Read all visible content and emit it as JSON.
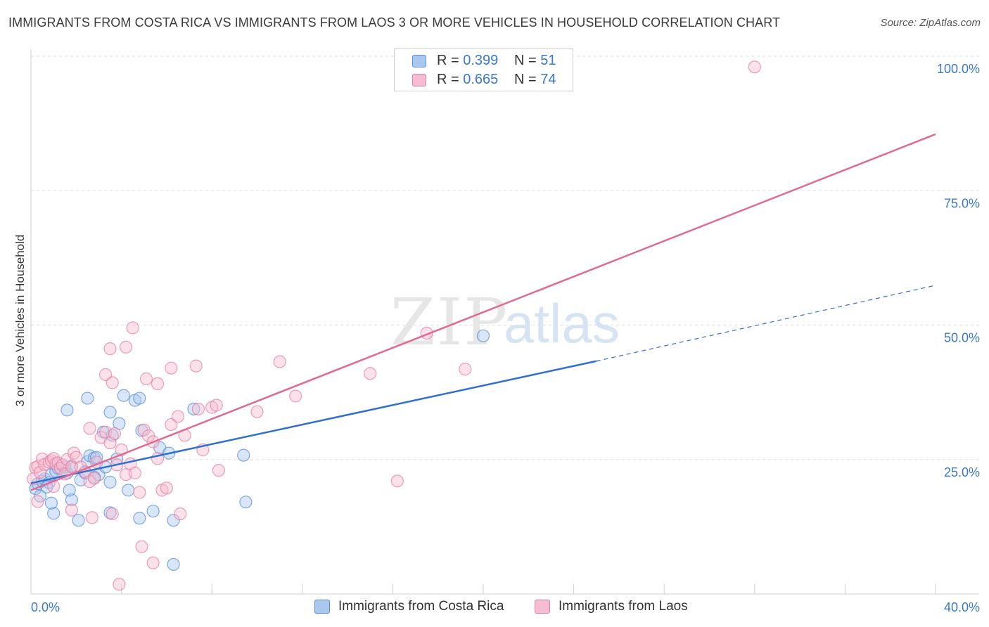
{
  "title": "IMMIGRANTS FROM COSTA RICA VS IMMIGRANTS FROM LAOS 3 OR MORE VEHICLES IN HOUSEHOLD CORRELATION CHART",
  "source": "Source: ZipAtlas.com",
  "watermark": {
    "zip": "ZIP",
    "atlas": "atlas"
  },
  "legend_top": [
    {
      "r_label": "R = ",
      "r_value": "0.399",
      "n_label": "N = ",
      "n_value": "51"
    },
    {
      "r_label": "R = ",
      "r_value": "0.665",
      "n_label": "N = ",
      "n_value": "74"
    }
  ],
  "legend_bottom": [
    {
      "label": "Immigrants from Costa Rica"
    },
    {
      "label": "Immigrants from Laos"
    }
  ],
  "colors": {
    "blue_fill": "#a9c8f0",
    "blue_stroke": "#5b8fd6",
    "blue_line": "#2f6fd0",
    "pink_fill": "#f6bcd0",
    "pink_stroke": "#e47fa3",
    "pink_line": "#e06a96",
    "axis_text": "#3a78c9",
    "grid": "#dddddd"
  },
  "chart_data": {
    "type": "scatter",
    "title": "IMMIGRANTS FROM COSTA RICA VS IMMIGRANTS FROM LAOS 3 OR MORE VEHICLES IN HOUSEHOLD CORRELATION CHART",
    "xlabel": "",
    "ylabel": "3 or more Vehicles in Household",
    "xlim": [
      0,
      40
    ],
    "ylim": [
      0,
      100
    ],
    "x_tick_labels": [
      "0.0%",
      "40.0%"
    ],
    "y_ticks": [
      25,
      50,
      75,
      100
    ],
    "y_tick_labels": [
      "25.0%",
      "50.0%",
      "75.0%",
      "100.0%"
    ],
    "grid": true,
    "legend_position": "top-center",
    "series": [
      {
        "name": "Immigrants from Costa Rica",
        "r": 0.399,
        "n": 51,
        "trend": {
          "x0": 0,
          "y0": 20.6,
          "x1": 25,
          "y1": 43.3,
          "dashed_to_x": 40,
          "dashed_to_y": 57.4
        },
        "points": [
          [
            0.2,
            19.6
          ],
          [
            0.3,
            20.5
          ],
          [
            0.5,
            21.0
          ],
          [
            0.6,
            21.4
          ],
          [
            0.8,
            20.7
          ],
          [
            0.9,
            22.2
          ],
          [
            1.1,
            22.8
          ],
          [
            1.2,
            23.4
          ],
          [
            1.5,
            23.6
          ],
          [
            1.6,
            22.5
          ],
          [
            1.8,
            23.8
          ],
          [
            2.2,
            21.2
          ],
          [
            2.4,
            22.5
          ],
          [
            2.5,
            24.6
          ],
          [
            2.6,
            25.7
          ],
          [
            2.8,
            25.3
          ],
          [
            2.9,
            25.4
          ],
          [
            3.0,
            22.2
          ],
          [
            3.2,
            30.1
          ],
          [
            3.3,
            23.6
          ],
          [
            3.5,
            20.8
          ],
          [
            3.6,
            29.5
          ],
          [
            3.8,
            25.1
          ],
          [
            1.6,
            34.2
          ],
          [
            2.5,
            36.4
          ],
          [
            3.5,
            33.8
          ],
          [
            3.5,
            15.1
          ],
          [
            3.9,
            31.7
          ],
          [
            4.1,
            36.9
          ],
          [
            4.3,
            19.3
          ],
          [
            4.6,
            36.0
          ],
          [
            4.8,
            36.4
          ],
          [
            4.8,
            14.1
          ],
          [
            4.9,
            30.4
          ],
          [
            5.4,
            15.4
          ],
          [
            5.7,
            27.2
          ],
          [
            6.1,
            26.2
          ],
          [
            6.3,
            13.7
          ],
          [
            6.3,
            5.5
          ],
          [
            7.2,
            34.4
          ],
          [
            9.4,
            25.8
          ],
          [
            9.5,
            17.1
          ],
          [
            20.0,
            48.0
          ],
          [
            1.0,
            15.0
          ],
          [
            0.4,
            18.2
          ],
          [
            1.8,
            17.5
          ],
          [
            2.1,
            13.7
          ],
          [
            0.9,
            16.9
          ],
          [
            1.7,
            19.3
          ],
          [
            0.7,
            19.9
          ],
          [
            2.8,
            21.7
          ]
        ]
      },
      {
        "name": "Immigrants from Laos",
        "r": 0.665,
        "n": 74,
        "trend": {
          "x0": 0,
          "y0": 19.3,
          "x1": 40,
          "y1": 85.5
        },
        "points": [
          [
            0.1,
            21.4
          ],
          [
            0.2,
            23.5
          ],
          [
            0.3,
            23.7
          ],
          [
            0.4,
            22.6
          ],
          [
            0.5,
            25.1
          ],
          [
            0.6,
            24.1
          ],
          [
            0.8,
            24.5
          ],
          [
            0.9,
            24.8
          ],
          [
            1.0,
            25.2
          ],
          [
            1.1,
            24.2
          ],
          [
            1.2,
            24.4
          ],
          [
            1.3,
            23.4
          ],
          [
            1.4,
            24.0
          ],
          [
            1.5,
            22.3
          ],
          [
            1.6,
            25.0
          ],
          [
            1.8,
            23.6
          ],
          [
            1.9,
            26.2
          ],
          [
            2.0,
            25.4
          ],
          [
            2.2,
            23.6
          ],
          [
            2.4,
            22.7
          ],
          [
            2.6,
            20.9
          ],
          [
            2.8,
            21.5
          ],
          [
            2.9,
            24.5
          ],
          [
            3.1,
            29.1
          ],
          [
            3.3,
            30.1
          ],
          [
            3.5,
            28.1
          ],
          [
            3.7,
            29.8
          ],
          [
            3.8,
            24.0
          ],
          [
            4.0,
            26.8
          ],
          [
            4.2,
            22.2
          ],
          [
            4.4,
            24.2
          ],
          [
            4.6,
            22.5
          ],
          [
            4.8,
            18.9
          ],
          [
            5.0,
            30.5
          ],
          [
            5.2,
            29.4
          ],
          [
            5.4,
            28.3
          ],
          [
            5.6,
            25.2
          ],
          [
            5.8,
            19.3
          ],
          [
            6.0,
            19.7
          ],
          [
            6.2,
            31.5
          ],
          [
            6.5,
            33.0
          ],
          [
            6.8,
            29.5
          ],
          [
            7.4,
            34.4
          ],
          [
            7.6,
            26.8
          ],
          [
            8.0,
            34.7
          ],
          [
            8.2,
            35.1
          ],
          [
            8.3,
            23.0
          ],
          [
            10.0,
            33.9
          ],
          [
            11.7,
            36.8
          ],
          [
            11.0,
            43.2
          ],
          [
            15.0,
            41.0
          ],
          [
            17.5,
            48.5
          ],
          [
            19.2,
            41.8
          ],
          [
            16.2,
            21.0
          ],
          [
            32.0,
            98.0
          ],
          [
            3.3,
            40.8
          ],
          [
            3.5,
            45.6
          ],
          [
            3.6,
            39.3
          ],
          [
            4.2,
            45.9
          ],
          [
            4.5,
            49.5
          ],
          [
            5.1,
            40.0
          ],
          [
            5.6,
            39.1
          ],
          [
            6.2,
            42.0
          ],
          [
            7.3,
            42.4
          ],
          [
            2.6,
            30.8
          ],
          [
            1.8,
            15.6
          ],
          [
            2.7,
            14.2
          ],
          [
            3.6,
            14.9
          ],
          [
            4.9,
            8.8
          ],
          [
            5.4,
            5.8
          ],
          [
            3.9,
            1.8
          ],
          [
            6.6,
            14.9
          ],
          [
            0.3,
            17.2
          ],
          [
            1.0,
            20.0
          ]
        ]
      }
    ]
  }
}
